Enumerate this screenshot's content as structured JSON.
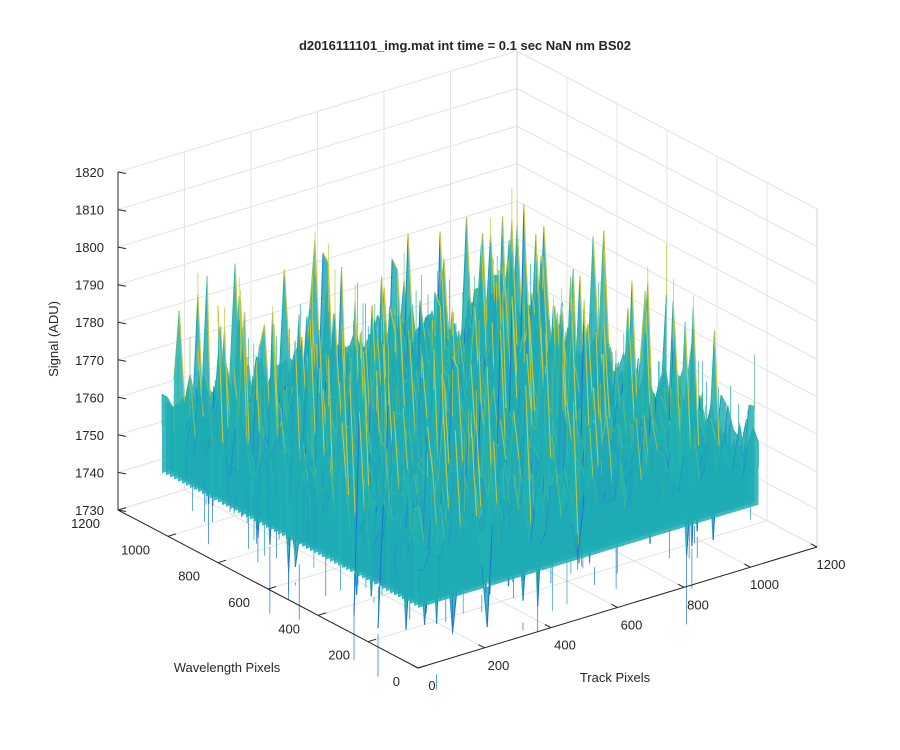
{
  "chart_data": {
    "type": "surface",
    "title": "d2016111101_img.mat int time = 0.1 sec  NaN nm BS02",
    "xlabel": "Track Pixels",
    "ylabel": "Wavelength Pixels",
    "zlabel": "Signal (ADU)",
    "xlim": [
      0,
      1200
    ],
    "ylim": [
      0,
      1200
    ],
    "zlim": [
      1730,
      1820
    ],
    "x_ticks": [
      "0",
      "200",
      "400",
      "600",
      "800",
      "1000",
      "1200"
    ],
    "y_ticks": [
      "0",
      "200",
      "400",
      "600",
      "800",
      "1000",
      "1200"
    ],
    "z_ticks": [
      "1730",
      "1740",
      "1750",
      "1760",
      "1770",
      "1780",
      "1790",
      "1800",
      "1810",
      "1820"
    ],
    "data_extent": {
      "x": [
        0,
        1024
      ],
      "y": [
        0,
        1024
      ]
    },
    "signal_mean": 1762,
    "signal_typical_range": [
      1745,
      1785
    ],
    "signal_peak_range": [
      1735,
      1810
    ],
    "grid": true,
    "colormap": "parula",
    "colors": {
      "low": "#1f73d6",
      "mid": "#1fb3b0",
      "high": "#c8c83a",
      "axis": "#262626",
      "grid": "#e3e3e3"
    }
  }
}
